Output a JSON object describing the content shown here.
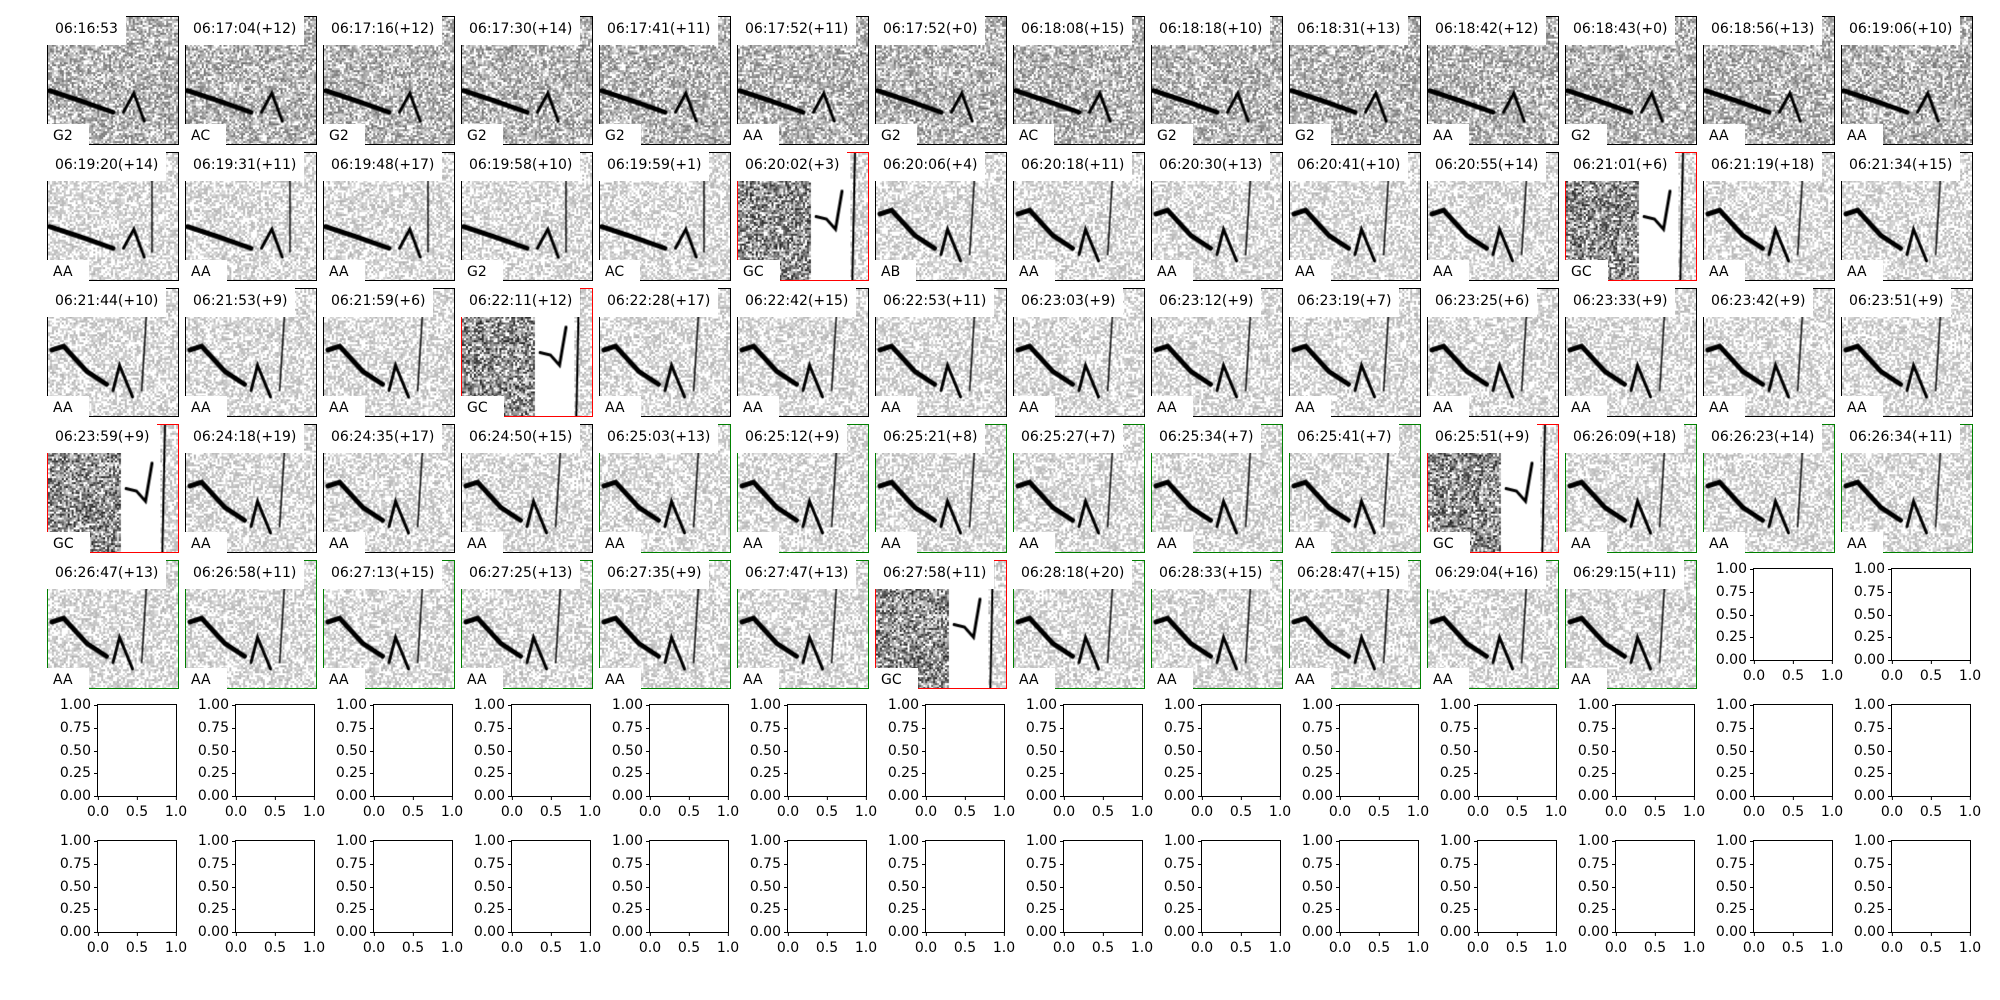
{
  "chart_data": {
    "type": "heatmap",
    "grid": {
      "rows": 7,
      "columns": 14
    },
    "frame_colors": {
      "default": "#000000",
      "red": "#ff0000",
      "green": "#008000"
    },
    "panels": [
      {
        "time": "06:16:53",
        "label": "G2",
        "frame": "default"
      },
      {
        "time": "06:17:04(+12)",
        "label": "AC",
        "frame": "default"
      },
      {
        "time": "06:17:16(+12)",
        "label": "G2",
        "frame": "default"
      },
      {
        "time": "06:17:30(+14)",
        "label": "G2",
        "frame": "default"
      },
      {
        "time": "06:17:41(+11)",
        "label": "G2",
        "frame": "default"
      },
      {
        "time": "06:17:52(+11)",
        "label": "AA",
        "frame": "default"
      },
      {
        "time": "06:17:52(+0)",
        "label": "G2",
        "frame": "default"
      },
      {
        "time": "06:18:08(+15)",
        "label": "AC",
        "frame": "default"
      },
      {
        "time": "06:18:18(+10)",
        "label": "G2",
        "frame": "default"
      },
      {
        "time": "06:18:31(+13)",
        "label": "G2",
        "frame": "default"
      },
      {
        "time": "06:18:42(+12)",
        "label": "AA",
        "frame": "default"
      },
      {
        "time": "06:18:43(+0)",
        "label": "G2",
        "frame": "default"
      },
      {
        "time": "06:18:56(+13)",
        "label": "AA",
        "frame": "default"
      },
      {
        "time": "06:19:06(+10)",
        "label": "AA",
        "frame": "default"
      },
      {
        "time": "06:19:20(+14)",
        "label": "AA",
        "frame": "default"
      },
      {
        "time": "06:19:31(+11)",
        "label": "AA",
        "frame": "default"
      },
      {
        "time": "06:19:48(+17)",
        "label": "AA",
        "frame": "default"
      },
      {
        "time": "06:19:58(+10)",
        "label": "G2",
        "frame": "default"
      },
      {
        "time": "06:19:59(+1)",
        "label": "AC",
        "frame": "default"
      },
      {
        "time": "06:20:02(+3)",
        "label": "GC",
        "frame": "red"
      },
      {
        "time": "06:20:06(+4)",
        "label": "AB",
        "frame": "default"
      },
      {
        "time": "06:20:18(+11)",
        "label": "AA",
        "frame": "default"
      },
      {
        "time": "06:20:30(+13)",
        "label": "AA",
        "frame": "default"
      },
      {
        "time": "06:20:41(+10)",
        "label": "AA",
        "frame": "default"
      },
      {
        "time": "06:20:55(+14)",
        "label": "AA",
        "frame": "default"
      },
      {
        "time": "06:21:01(+6)",
        "label": "GC",
        "frame": "red"
      },
      {
        "time": "06:21:19(+18)",
        "label": "AA",
        "frame": "default"
      },
      {
        "time": "06:21:34(+15)",
        "label": "AA",
        "frame": "default"
      },
      {
        "time": "06:21:44(+10)",
        "label": "AA",
        "frame": "default"
      },
      {
        "time": "06:21:53(+9)",
        "label": "AA",
        "frame": "default"
      },
      {
        "time": "06:21:59(+6)",
        "label": "AA",
        "frame": "default"
      },
      {
        "time": "06:22:11(+12)",
        "label": "GC",
        "frame": "red"
      },
      {
        "time": "06:22:28(+17)",
        "label": "AA",
        "frame": "default"
      },
      {
        "time": "06:22:42(+15)",
        "label": "AA",
        "frame": "default"
      },
      {
        "time": "06:22:53(+11)",
        "label": "AA",
        "frame": "default"
      },
      {
        "time": "06:23:03(+9)",
        "label": "AA",
        "frame": "default"
      },
      {
        "time": "06:23:12(+9)",
        "label": "AA",
        "frame": "default"
      },
      {
        "time": "06:23:19(+7)",
        "label": "AA",
        "frame": "default"
      },
      {
        "time": "06:23:25(+6)",
        "label": "AA",
        "frame": "default"
      },
      {
        "time": "06:23:33(+9)",
        "label": "AA",
        "frame": "default"
      },
      {
        "time": "06:23:42(+9)",
        "label": "AA",
        "frame": "default"
      },
      {
        "time": "06:23:51(+9)",
        "label": "AA",
        "frame": "default"
      },
      {
        "time": "06:23:59(+9)",
        "label": "GC",
        "frame": "red"
      },
      {
        "time": "06:24:18(+19)",
        "label": "AA",
        "frame": "default"
      },
      {
        "time": "06:24:35(+17)",
        "label": "AA",
        "frame": "default"
      },
      {
        "time": "06:24:50(+15)",
        "label": "AA",
        "frame": "default"
      },
      {
        "time": "06:25:03(+13)",
        "label": "AA",
        "frame": "green"
      },
      {
        "time": "06:25:12(+9)",
        "label": "AA",
        "frame": "green"
      },
      {
        "time": "06:25:21(+8)",
        "label": "AA",
        "frame": "green"
      },
      {
        "time": "06:25:27(+7)",
        "label": "AA",
        "frame": "green"
      },
      {
        "time": "06:25:34(+7)",
        "label": "AA",
        "frame": "green"
      },
      {
        "time": "06:25:41(+7)",
        "label": "AA",
        "frame": "green"
      },
      {
        "time": "06:25:51(+9)",
        "label": "GC",
        "frame": "red"
      },
      {
        "time": "06:26:09(+18)",
        "label": "AA",
        "frame": "green"
      },
      {
        "time": "06:26:23(+14)",
        "label": "AA",
        "frame": "green"
      },
      {
        "time": "06:26:34(+11)",
        "label": "AA",
        "frame": "green"
      },
      {
        "time": "06:26:47(+13)",
        "label": "AA",
        "frame": "green"
      },
      {
        "time": "06:26:58(+11)",
        "label": "AA",
        "frame": "green"
      },
      {
        "time": "06:27:13(+15)",
        "label": "AA",
        "frame": "green"
      },
      {
        "time": "06:27:25(+13)",
        "label": "AA",
        "frame": "green"
      },
      {
        "time": "06:27:35(+9)",
        "label": "AA",
        "frame": "green"
      },
      {
        "time": "06:27:47(+13)",
        "label": "AA",
        "frame": "green"
      },
      {
        "time": "06:27:58(+11)",
        "label": "GC",
        "frame": "red"
      },
      {
        "time": "06:28:18(+20)",
        "label": "AA",
        "frame": "green"
      },
      {
        "time": "06:28:33(+15)",
        "label": "AA",
        "frame": "green"
      },
      {
        "time": "06:28:47(+15)",
        "label": "AA",
        "frame": "green"
      },
      {
        "time": "06:29:04(+16)",
        "label": "AA",
        "frame": "green"
      },
      {
        "time": "06:29:15(+11)",
        "label": "AA",
        "frame": "green"
      }
    ],
    "empty_axes": {
      "count": 30,
      "xlim": [
        0,
        1
      ],
      "ylim": [
        0,
        1
      ],
      "yticks": [
        "0.00",
        "0.25",
        "0.50",
        "0.75",
        "1.00"
      ],
      "xticks": [
        "0.0",
        "0.5",
        "1.0"
      ]
    }
  }
}
